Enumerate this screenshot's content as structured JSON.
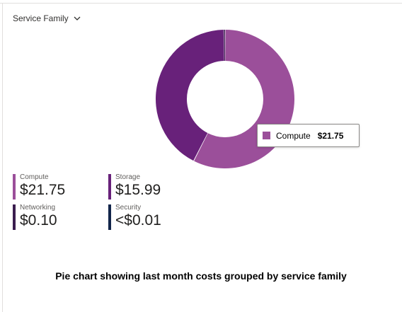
{
  "scope_dropdown": {
    "label": "Service Family"
  },
  "chart_data": {
    "type": "pie",
    "categories": [
      "Compute",
      "Storage",
      "Networking",
      "Security"
    ],
    "values": [
      21.75,
      15.99,
      0.1,
      0.005
    ],
    "display_values": [
      "$21.75",
      "$15.99",
      "$0.10",
      "<$0.01"
    ],
    "colors": [
      "#9b4f9a",
      "#68217a",
      "#3b1d4f",
      "#12254a"
    ],
    "title": "",
    "legend_placement": "bottom-left"
  },
  "tooltip": {
    "label": "Compute",
    "value": "$21.75"
  },
  "caption": "Pie chart showing last month costs grouped by service family"
}
